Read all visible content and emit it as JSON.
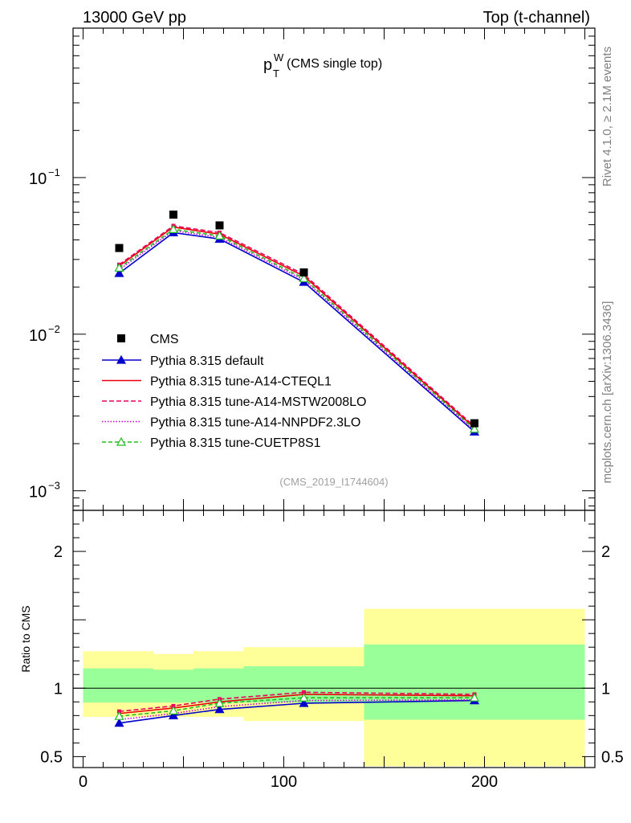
{
  "header": {
    "left": "13000 GeV pp",
    "right": "Top (t-channel)"
  },
  "side_labels": {
    "rivet": "Rivet 4.1.0, ≥ 2.1M events",
    "mcplots": "mcplots.cern.ch [arXiv:1306.3436]"
  },
  "chart_data": {
    "type": "line",
    "title": {
      "main": "p",
      "sub": "T",
      "sup": "W",
      "suffix": " (CMS single top)"
    },
    "analysis_id": "(CMS_2019_I1744604)",
    "x": [
      18,
      45,
      68,
      110,
      195
    ],
    "bin_edges": [
      0,
      35,
      55,
      80,
      140,
      250
    ],
    "xlim": [
      -5,
      255
    ],
    "top": {
      "yscale": "log",
      "ylim": [
        0.00075,
        0.9
      ],
      "yticks": [
        {
          "v": 0.1,
          "b": "10",
          "e": "−1"
        },
        {
          "v": 0.01,
          "b": "10",
          "e": "−2"
        },
        {
          "v": 0.001,
          "b": "10",
          "e": "−3"
        }
      ]
    },
    "ratio": {
      "ylabel": "Ratio to CMS",
      "ylim": [
        0.42,
        2.3
      ],
      "yticks": [
        "0.5",
        "1",
        "2"
      ],
      "xticks": [
        "0",
        "100",
        "200"
      ],
      "band_inner": [
        [
          0.895,
          1.145
        ],
        [
          0.895,
          1.135
        ],
        [
          0.895,
          1.145
        ],
        [
          0.895,
          1.16
        ],
        [
          0.77,
          1.32
        ]
      ],
      "band_outer": [
        [
          0.79,
          1.27
        ],
        [
          0.79,
          1.25
        ],
        [
          0.79,
          1.27
        ],
        [
          0.76,
          1.3
        ],
        [
          0.43,
          1.58
        ]
      ]
    },
    "data_points": {
      "name": "CMS",
      "values": [
        0.0355,
        0.058,
        0.0495,
        0.0248,
        0.0027
      ]
    },
    "series": [
      {
        "name": "Pythia 8.315 default",
        "color": "#0000cc",
        "dash": "",
        "marker": "triangle-filled",
        "values": [
          0.0245,
          0.0445,
          0.0405,
          0.0215,
          0.00238
        ],
        "ratio": [
          0.745,
          0.8,
          0.845,
          0.89,
          0.91
        ]
      },
      {
        "name": "Pythia 8.315 tune-A14-CTEQL1",
        "color": "#e8000b",
        "dash": "",
        "marker": "",
        "values": [
          0.0273,
          0.0483,
          0.0435,
          0.0235,
          0.00253
        ],
        "ratio": [
          0.815,
          0.855,
          0.9,
          0.955,
          0.945
        ]
      },
      {
        "name": "Pythia 8.315 tune-A14-MSTW2008LO",
        "color": "#e8005a",
        "dash": "6,3",
        "marker": "square-small",
        "values": [
          0.0278,
          0.0492,
          0.0445,
          0.0241,
          0.00258
        ],
        "ratio": [
          0.83,
          0.87,
          0.92,
          0.97,
          0.955
        ]
      },
      {
        "name": "Pythia 8.315 tune-A14-NNPDF2.3LO",
        "color": "#cc00cc",
        "dash": "1.5,2",
        "marker": "",
        "values": [
          0.0258,
          0.0458,
          0.0415,
          0.0222,
          0.00243
        ],
        "ratio": [
          0.77,
          0.815,
          0.865,
          0.91,
          0.915
        ]
      },
      {
        "name": "Pythia 8.315 tune-CUETP8S1",
        "color": "#22bb22",
        "dash": "5,3",
        "marker": "triangle-open",
        "values": [
          0.0265,
          0.0467,
          0.0425,
          0.0227,
          0.00248
        ],
        "ratio": [
          0.795,
          0.835,
          0.89,
          0.93,
          0.93
        ]
      }
    ]
  }
}
